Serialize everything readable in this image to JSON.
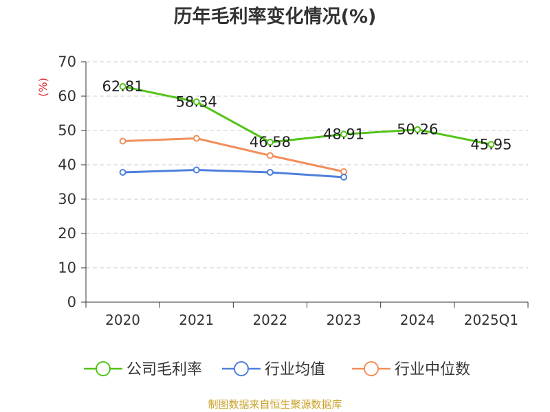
{
  "chart_data": {
    "type": "line",
    "title": "历年毛利率变化情况(%)",
    "ylabel": "(%)",
    "xlabel": "",
    "categories": [
      "2020",
      "2021",
      "2022",
      "2023",
      "2024",
      "2025Q1"
    ],
    "ylim": [
      0,
      70
    ],
    "yticks": [
      0,
      10,
      20,
      30,
      40,
      50,
      60,
      70
    ],
    "grid": true,
    "legend_position": "bottom",
    "series": [
      {
        "name": "公司毛利率",
        "color": "#52c41a",
        "values": [
          62.81,
          58.34,
          46.58,
          48.91,
          50.26,
          45.95
        ],
        "labels": [
          "62.81",
          "58.34",
          "46.58",
          "48.91",
          "50.26",
          "45.95"
        ]
      },
      {
        "name": "行业均值",
        "color": "#4e7fdc",
        "values": [
          37.8,
          38.5,
          37.8,
          36.4,
          null,
          null
        ]
      },
      {
        "name": "行业中位数",
        "color": "#f28e5b",
        "values": [
          46.9,
          47.7,
          42.7,
          38.0,
          null,
          null
        ]
      }
    ]
  },
  "source": "制图数据来自恒生聚源数据库"
}
